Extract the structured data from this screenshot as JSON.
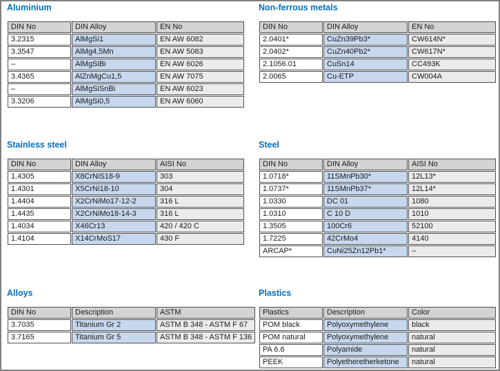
{
  "colors": {
    "title": "#0070c0",
    "header_bg": "#d3d3d3",
    "col2_bg": "#c7d8ee",
    "col3_bg": "#ebebeb",
    "cell_border": "#4d4d4d",
    "frame_border": "#808080"
  },
  "sections": [
    {
      "id": "aluminium",
      "title": "Aluminium",
      "headers": [
        "DIN No",
        "DIN Alloy",
        "EN No"
      ],
      "rows": [
        [
          "3.2315",
          "AlMgSi1",
          "EN AW 6082"
        ],
        [
          "3.3547",
          "AlMg4,5Mn",
          "EN AW 5083"
        ],
        [
          "–",
          "AlMgSiBi",
          "EN AW 6026"
        ],
        [
          "3.4365",
          "AlZnMgCu1,5",
          "EN AW 7075"
        ],
        [
          "–",
          "AlMgSiSnBi",
          "EN AW 6023"
        ],
        [
          "3.3206",
          "AlMgSi0,5",
          "EN AW 6060"
        ]
      ]
    },
    {
      "id": "non-ferrous-metals",
      "title": "Non-ferrous metals",
      "headers": [
        "DIN No",
        "DIN Alloy",
        "EN No"
      ],
      "rows": [
        [
          "2.0401*",
          "CuZn39Pb3*",
          "CW614N*"
        ],
        [
          "2.0402*",
          "CuZn40Pb2*",
          "CW617N*"
        ],
        [
          "2.1056.01",
          "CuSn14",
          "CC493K"
        ],
        [
          "2.0065",
          "Cu-ETP",
          "CW004A"
        ]
      ]
    },
    {
      "id": "stainless-steel",
      "title": "Stainless steel",
      "headers": [
        "DIN No",
        "DIN Alloy",
        "AISI No"
      ],
      "rows": [
        [
          "1.4305",
          "X8CrNiS18-9",
          "303"
        ],
        [
          "1.4301",
          "X5CrNi18-10",
          "304"
        ],
        [
          "1.4404",
          "X2CrNiMo17-12-2",
          "316 L"
        ],
        [
          "1.4435",
          "X2CrNiMo18-14-3",
          "316 L"
        ],
        [
          "1.4034",
          "X46Cr13",
          "420 / 420 C"
        ],
        [
          "1.4104",
          "X14CrMoS17",
          "430 F"
        ]
      ]
    },
    {
      "id": "steel",
      "title": "Steel",
      "headers": [
        "DIN No",
        "DIN Alloy",
        "AISI No"
      ],
      "rows": [
        [
          "1.0718*",
          "11SMnPb30*",
          "12L13*"
        ],
        [
          "1.0737*",
          "11SMnPb37*",
          "12L14*"
        ],
        [
          "1.0330",
          "DC 01",
          "1080"
        ],
        [
          "1.0310",
          "C 10 D",
          "1010"
        ],
        [
          "1.3505",
          "100Cr6",
          "52100"
        ],
        [
          "1.7225",
          "42CrMo4",
          "4140"
        ],
        [
          "ARCAP*",
          "CuNi25Zn12Pb1*",
          "–"
        ]
      ]
    },
    {
      "id": "alloys",
      "title": "Alloys",
      "headers": [
        "DIN No",
        "Description",
        "ASTM"
      ],
      "rows": [
        [
          "3.7035",
          "Titanium Gr 2",
          "ASTM B 348 - ASTM F 67"
        ],
        [
          "3.7165",
          "Titanium Gr 5",
          "ASTM B 348 - ASTM F 136"
        ]
      ]
    },
    {
      "id": "plastics",
      "title": "Plastics",
      "headers": [
        "Plastics",
        "Description",
        "Color"
      ],
      "rows": [
        [
          "POM black",
          "Polyoxymethylene",
          "black"
        ],
        [
          "POM natural",
          "Polyoxymethylene",
          "natural"
        ],
        [
          "PA 6.6",
          "Polyamide",
          "natural"
        ],
        [
          "PEEK",
          "Polyetheretherketone",
          "natural"
        ]
      ]
    }
  ]
}
